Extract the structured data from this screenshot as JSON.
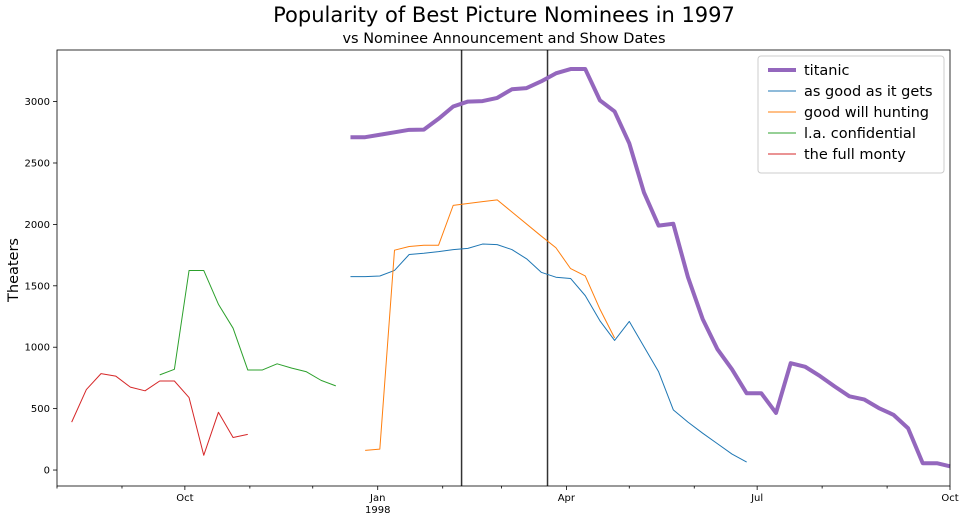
{
  "chart_data": {
    "type": "line",
    "title": "Popularity of Best Picture Nominees in 1997",
    "subtitle": "vs Nominee Announcement and Show Dates",
    "xlabel": "",
    "ylabel": "Theaters",
    "xlim": [
      "1997-08-01",
      "1998-10-01"
    ],
    "ylim": [
      -130,
      3420
    ],
    "yticks": [
      0,
      500,
      1000,
      1500,
      2000,
      2500,
      3000
    ],
    "xticks": [
      {
        "date": "1997-10-01",
        "label": "Oct",
        "sublabel": ""
      },
      {
        "date": "1998-01-01",
        "label": "Jan",
        "sublabel": "1998"
      },
      {
        "date": "1998-04-01",
        "label": "Apr",
        "sublabel": ""
      },
      {
        "date": "1998-07-01",
        "label": "Jul",
        "sublabel": ""
      },
      {
        "date": "1998-10-01",
        "label": "Oct",
        "sublabel": ""
      }
    ],
    "minor_xticks": [
      "1997-08-01",
      "1997-09-01",
      "1997-11-01",
      "1997-12-01",
      "1998-02-01",
      "1998-03-01",
      "1998-05-01",
      "1998-06-01",
      "1998-08-01",
      "1998-09-01"
    ],
    "vlines": [
      {
        "date": "1998-02-10",
        "color": "#333333"
      },
      {
        "date": "1998-03-23",
        "color": "#333333"
      }
    ],
    "grid": false,
    "legend": "upper-right",
    "series": [
      {
        "name": "titanic",
        "color": "#9467bd",
        "width": 4,
        "points": [
          [
            "1997-12-19",
            2710
          ],
          [
            "1997-12-26",
            2710
          ],
          [
            "1998-01-02",
            2730
          ],
          [
            "1998-01-09",
            2750
          ],
          [
            "1998-01-16",
            2770
          ],
          [
            "1998-01-23",
            2772
          ],
          [
            "1998-01-30",
            2860
          ],
          [
            "1998-02-06",
            2960
          ],
          [
            "1998-02-13",
            3000
          ],
          [
            "1998-02-20",
            3004
          ],
          [
            "1998-02-27",
            3030
          ],
          [
            "1998-03-06",
            3100
          ],
          [
            "1998-03-13",
            3110
          ],
          [
            "1998-03-20",
            3165
          ],
          [
            "1998-03-27",
            3230
          ],
          [
            "1998-04-03",
            3265
          ],
          [
            "1998-04-10",
            3265
          ],
          [
            "1998-04-17",
            3010
          ],
          [
            "1998-04-24",
            2920
          ],
          [
            "1998-05-01",
            2660
          ],
          [
            "1998-05-08",
            2260
          ],
          [
            "1998-05-15",
            1990
          ],
          [
            "1998-05-22",
            2005
          ],
          [
            "1998-05-29",
            1570
          ],
          [
            "1998-06-05",
            1230
          ],
          [
            "1998-06-12",
            985
          ],
          [
            "1998-06-19",
            820
          ],
          [
            "1998-06-26",
            625
          ],
          [
            "1998-07-03",
            625
          ],
          [
            "1998-07-10",
            465
          ],
          [
            "1998-07-17",
            870
          ],
          [
            "1998-07-24",
            840
          ],
          [
            "1998-07-31",
            765
          ],
          [
            "1998-08-07",
            680
          ],
          [
            "1998-08-14",
            600
          ],
          [
            "1998-08-21",
            575
          ],
          [
            "1998-08-28",
            505
          ],
          [
            "1998-09-04",
            450
          ],
          [
            "1998-09-11",
            340
          ],
          [
            "1998-09-18",
            55
          ],
          [
            "1998-09-25",
            55
          ],
          [
            "1998-10-01",
            30
          ]
        ]
      },
      {
        "name": "as good as it gets",
        "color": "#1f77b4",
        "width": 1,
        "points": [
          [
            "1997-12-19",
            1575
          ],
          [
            "1997-12-26",
            1575
          ],
          [
            "1998-01-02",
            1580
          ],
          [
            "1998-01-09",
            1625
          ],
          [
            "1998-01-16",
            1755
          ],
          [
            "1998-01-23",
            1765
          ],
          [
            "1998-01-30",
            1778
          ],
          [
            "1998-02-06",
            1795
          ],
          [
            "1998-02-13",
            1805
          ],
          [
            "1998-02-20",
            1840
          ],
          [
            "1998-02-27",
            1835
          ],
          [
            "1998-03-06",
            1795
          ],
          [
            "1998-03-13",
            1720
          ],
          [
            "1998-03-20",
            1610
          ],
          [
            "1998-03-27",
            1570
          ],
          [
            "1998-04-03",
            1560
          ],
          [
            "1998-04-10",
            1420
          ],
          [
            "1998-04-17",
            1215
          ],
          [
            "1998-04-24",
            1055
          ],
          [
            "1998-05-01",
            1210
          ],
          [
            "1998-05-08",
            1005
          ],
          [
            "1998-05-15",
            800
          ],
          [
            "1998-05-22",
            490
          ],
          [
            "1998-05-29",
            390
          ],
          [
            "1998-06-05",
            300
          ],
          [
            "1998-06-12",
            215
          ],
          [
            "1998-06-19",
            130
          ],
          [
            "1998-06-26",
            65
          ]
        ]
      },
      {
        "name": "good will hunting",
        "color": "#ff7f0e",
        "width": 1,
        "points": [
          [
            "1997-12-26",
            160
          ],
          [
            "1998-01-02",
            170
          ],
          [
            "1998-01-09",
            1790
          ],
          [
            "1998-01-16",
            1820
          ],
          [
            "1998-01-23",
            1830
          ],
          [
            "1998-01-30",
            1830
          ],
          [
            "1998-02-06",
            2155
          ],
          [
            "1998-02-13",
            2170
          ],
          [
            "1998-02-20",
            2185
          ],
          [
            "1998-02-27",
            2200
          ],
          [
            "1998-03-20",
            1905
          ],
          [
            "1998-03-27",
            1810
          ],
          [
            "1998-04-03",
            1640
          ],
          [
            "1998-04-10",
            1580
          ],
          [
            "1998-04-17",
            1310
          ],
          [
            "1998-04-24",
            1075
          ]
        ]
      },
      {
        "name": "l.a. confidential",
        "color": "#2ca02c",
        "width": 1,
        "points": [
          [
            "1997-09-19",
            775
          ],
          [
            "1997-09-26",
            820
          ],
          [
            "1997-10-03",
            1625
          ],
          [
            "1997-10-10",
            1625
          ],
          [
            "1997-10-17",
            1350
          ],
          [
            "1997-10-24",
            1155
          ],
          [
            "1997-10-31",
            815
          ],
          [
            "1997-11-07",
            815
          ],
          [
            "1997-11-14",
            865
          ],
          [
            "1997-11-21",
            830
          ],
          [
            "1997-11-28",
            800
          ],
          [
            "1997-12-05",
            730
          ],
          [
            "1997-12-12",
            685
          ]
        ]
      },
      {
        "name": "the full monty",
        "color": "#d62728",
        "width": 1,
        "points": [
          [
            "1997-08-08",
            390
          ],
          [
            "1997-08-15",
            655
          ],
          [
            "1997-08-22",
            785
          ],
          [
            "1997-08-29",
            765
          ],
          [
            "1997-09-05",
            675
          ],
          [
            "1997-09-12",
            645
          ],
          [
            "1997-09-19",
            725
          ],
          [
            "1997-09-26",
            725
          ],
          [
            "1997-10-03",
            590
          ],
          [
            "1997-10-10",
            120
          ],
          [
            "1997-10-17",
            470
          ],
          [
            "1997-10-24",
            265
          ],
          [
            "1997-10-31",
            290
          ]
        ]
      }
    ]
  }
}
